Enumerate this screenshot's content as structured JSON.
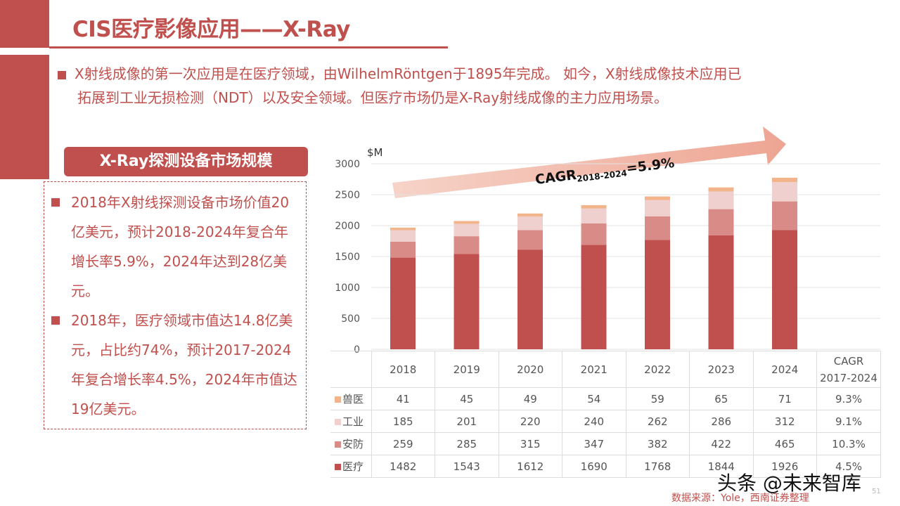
{
  "title": "CIS医疗影像应用——X-Ray",
  "intro": {
    "line1": "X射线成像的第一次应用是在医疗领域，由WilhelmRöntgen于1895年完成。 如今，X射线成像技术应用已",
    "line2": "拓展到工业无损检测（NDT）以及安全领域。但医疗市场仍是X-Ray射线成像的主力应用场景。"
  },
  "subhead": "X-Ray探测设备市场规模",
  "notes": [
    "2018年X射线探测设备市场价值20亿美元，预计2018-2024年复合年增长率5.9%，2024年达到28亿美元。",
    "2018年，医疗领域市值达14.8亿美元，占比约74%，预计2017-2024年复合增长率4.5%，2024年市值达19亿美元。"
  ],
  "source": "数据来源：Yole，西南证券整理",
  "watermark": "头条 @未来智库",
  "page_number": "51",
  "chart_data": {
    "type": "bar",
    "stacked": true,
    "ylabel": "$M",
    "ylim": [
      0,
      3000
    ],
    "yticks": [
      0,
      500,
      1000,
      1500,
      2000,
      2500,
      3000
    ],
    "grid": true,
    "categories": [
      "2018",
      "2019",
      "2020",
      "2021",
      "2022",
      "2023",
      "2024"
    ],
    "cagr_header": [
      "CAGR",
      "2017-2024"
    ],
    "annotation": {
      "text": "CAGR",
      "sub": "2018-2024",
      "value": "=5.9%"
    },
    "series": [
      {
        "name": "医疗",
        "color": "#c0504d",
        "values": [
          1482,
          1543,
          1612,
          1690,
          1768,
          1844,
          1926
        ],
        "cagr": "4.5%"
      },
      {
        "name": "安防",
        "color": "#d98b88",
        "values": [
          259,
          285,
          315,
          347,
          382,
          422,
          465
        ],
        "cagr": "10.3%"
      },
      {
        "name": "工业",
        "color": "#f0cfcf",
        "values": [
          185,
          201,
          220,
          240,
          262,
          286,
          312
        ],
        "cagr": "9.1%"
      },
      {
        "name": "兽医",
        "color": "#f2b48a",
        "values": [
          41,
          45,
          49,
          54,
          59,
          65,
          71
        ],
        "cagr": "9.3%"
      }
    ]
  }
}
